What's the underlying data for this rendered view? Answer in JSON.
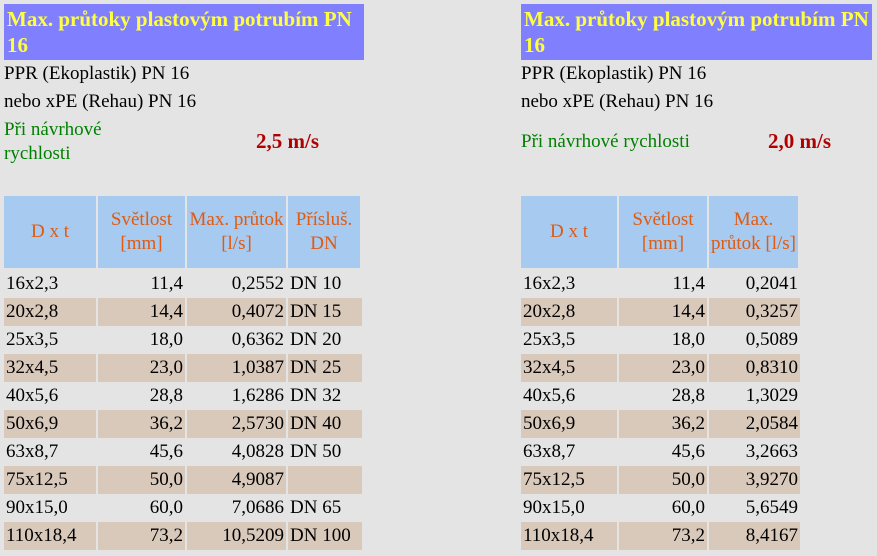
{
  "panels": [
    {
      "title": "Max. průtoky plastovým potrubím PN 16",
      "lines": [
        "PPR (Ekoplastik) PN 16",
        "nebo xPE (Rehau) PN 16"
      ],
      "speed_label": "Při návrhové rychlosti",
      "speed": "2,5 m/s",
      "table": {
        "header": [
          "D x t",
          "Světlost [mm]",
          "Max. průtok [l/s]",
          "Přísluš. DN"
        ],
        "rows": [
          [
            "16x2,3",
            "11,4",
            "0,2552",
            "DN 10"
          ],
          [
            "20x2,8",
            "14,4",
            "0,4072",
            "DN 15"
          ],
          [
            "25x3,5",
            "18,0",
            "0,6362",
            "DN 20"
          ],
          [
            "32x4,5",
            "23,0",
            "1,0387",
            "DN 25"
          ],
          [
            "40x5,6",
            "28,8",
            "1,6286",
            "DN 32"
          ],
          [
            "50x6,9",
            "36,2",
            "2,5730",
            "DN 40"
          ],
          [
            "63x8,7",
            "45,6",
            "4,0828",
            "DN 50"
          ],
          [
            "75x12,5",
            "50,0",
            "4,9087",
            null
          ],
          [
            "90x15,0",
            "60,0",
            "7,0686",
            "DN 65"
          ],
          [
            "110x18,4",
            "73,2",
            "10,5209",
            "DN 100"
          ]
        ]
      }
    },
    {
      "title": "Max. průtoky plastovým potrubím PN 16",
      "lines": [
        "PPR (Ekoplastik) PN 16",
        "nebo xPE (Rehau) PN 16"
      ],
      "speed_label": "Při návrhové rychlosti",
      "speed": "2,0 m/s",
      "table": {
        "header": [
          "D x t",
          "Světlost [mm]",
          "Max. průtok [l/s]"
        ],
        "rows": [
          [
            "16x2,3",
            "11,4",
            "0,2041"
          ],
          [
            "20x2,8",
            "14,4",
            "0,3257"
          ],
          [
            "25x3,5",
            "18,0",
            "0,5089"
          ],
          [
            "32x4,5",
            "23,0",
            "0,8310"
          ],
          [
            "40x5,6",
            "28,8",
            "1,3029"
          ],
          [
            "50x6,9",
            "36,2",
            "2,0584"
          ],
          [
            "63x8,7",
            "45,6",
            "3,2663"
          ],
          [
            "75x12,5",
            "50,0",
            "3,9270"
          ],
          [
            "90x15,0",
            "60,0",
            "5,6549"
          ],
          [
            "110x18,4",
            "73,2",
            "8,4167"
          ]
        ]
      }
    }
  ]
}
